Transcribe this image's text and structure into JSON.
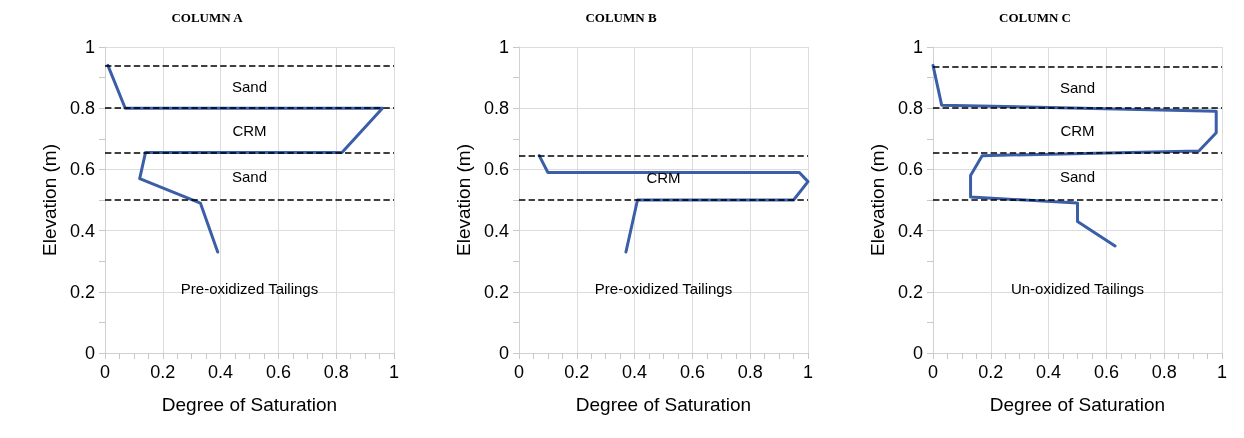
{
  "chart_data": [
    {
      "type": "line",
      "title": "COLUMN A",
      "xlabel": "Degree of Saturation",
      "ylabel": "Elevation (m)",
      "series": [
        {
          "color": "#3a5ea8",
          "x": [
            0.01,
            0.07,
            0.96,
            0.82,
            0.14,
            0.12,
            0.33,
            0.39
          ],
          "values": [
            0.94,
            0.8,
            0.8,
            0.655,
            0.655,
            0.57,
            0.49,
            0.33
          ]
        }
      ],
      "xlim": [
        0,
        1
      ],
      "ylim": [
        0,
        1
      ],
      "xticks": [
        0,
        0.2,
        0.4,
        0.6,
        0.8,
        1
      ],
      "yticks": [
        0,
        0.2,
        0.4,
        0.6,
        0.8,
        1
      ],
      "ref_lines": [
        {
          "axis": "y",
          "value": 0.94,
          "color": "#000000",
          "line_style": "dashed"
        },
        {
          "axis": "y",
          "value": 0.8,
          "color": "#000000",
          "line_style": "dashed"
        },
        {
          "axis": "y",
          "value": 0.655,
          "color": "#000000",
          "line_style": "dashed"
        },
        {
          "axis": "y",
          "value": 0.5,
          "color": "#000000",
          "line_style": "dashed"
        }
      ],
      "annotations": [
        "Sand",
        "CRM",
        "Sand",
        "Pre-oxidized Tailings"
      ],
      "grid": true,
      "marker": "none",
      "line_style": "solid"
    },
    {
      "type": "line",
      "title": "COLUMN B",
      "xlabel": "Degree of Saturation",
      "ylabel": "Elevation (m)",
      "series": [
        {
          "color": "#3a5ea8",
          "x": [
            0.07,
            0.1,
            0.97,
            1.0,
            0.95,
            0.41,
            0.37
          ],
          "values": [
            0.645,
            0.59,
            0.59,
            0.56,
            0.5,
            0.5,
            0.33
          ]
        }
      ],
      "xlim": [
        0,
        1
      ],
      "ylim": [
        0,
        1
      ],
      "xticks": [
        0,
        0.2,
        0.4,
        0.6,
        0.8,
        1
      ],
      "yticks": [
        0,
        0.2,
        0.4,
        0.6,
        0.8,
        1
      ],
      "ref_lines": [
        {
          "axis": "y",
          "value": 0.645,
          "color": "#000000",
          "line_style": "dashed"
        },
        {
          "axis": "y",
          "value": 0.5,
          "color": "#000000",
          "line_style": "dashed"
        }
      ],
      "annotations": [
        "CRM",
        "Pre-oxidized Tailings"
      ],
      "grid": true,
      "marker": "none",
      "line_style": "solid"
    },
    {
      "type": "line",
      "title": "COLUMN C",
      "xlabel": "Degree of Saturation",
      "ylabel": "Elevation (m)",
      "series": [
        {
          "color": "#3a5ea8",
          "x": [
            0.0,
            0.03,
            0.98,
            0.98,
            0.92,
            0.17,
            0.13,
            0.13,
            0.5,
            0.5,
            0.63
          ],
          "values": [
            0.94,
            0.81,
            0.79,
            0.72,
            0.66,
            0.645,
            0.58,
            0.51,
            0.49,
            0.43,
            0.35
          ]
        }
      ],
      "xlim": [
        0,
        1
      ],
      "ylim": [
        0,
        1
      ],
      "xticks": [
        0,
        0.2,
        0.4,
        0.6,
        0.8,
        1
      ],
      "yticks": [
        0,
        0.2,
        0.4,
        0.6,
        0.8,
        1
      ],
      "ref_lines": [
        {
          "axis": "y",
          "value": 0.935,
          "color": "#000000",
          "line_style": "dashed"
        },
        {
          "axis": "y",
          "value": 0.8,
          "color": "#000000",
          "line_style": "dashed"
        },
        {
          "axis": "y",
          "value": 0.655,
          "color": "#000000",
          "line_style": "dashed"
        },
        {
          "axis": "y",
          "value": 0.5,
          "color": "#000000",
          "line_style": "dashed"
        }
      ],
      "annotations": [
        "Sand",
        "CRM",
        "Sand",
        "Un-oxidized Tailings"
      ],
      "grid": true,
      "marker": "none",
      "line_style": "solid"
    }
  ]
}
